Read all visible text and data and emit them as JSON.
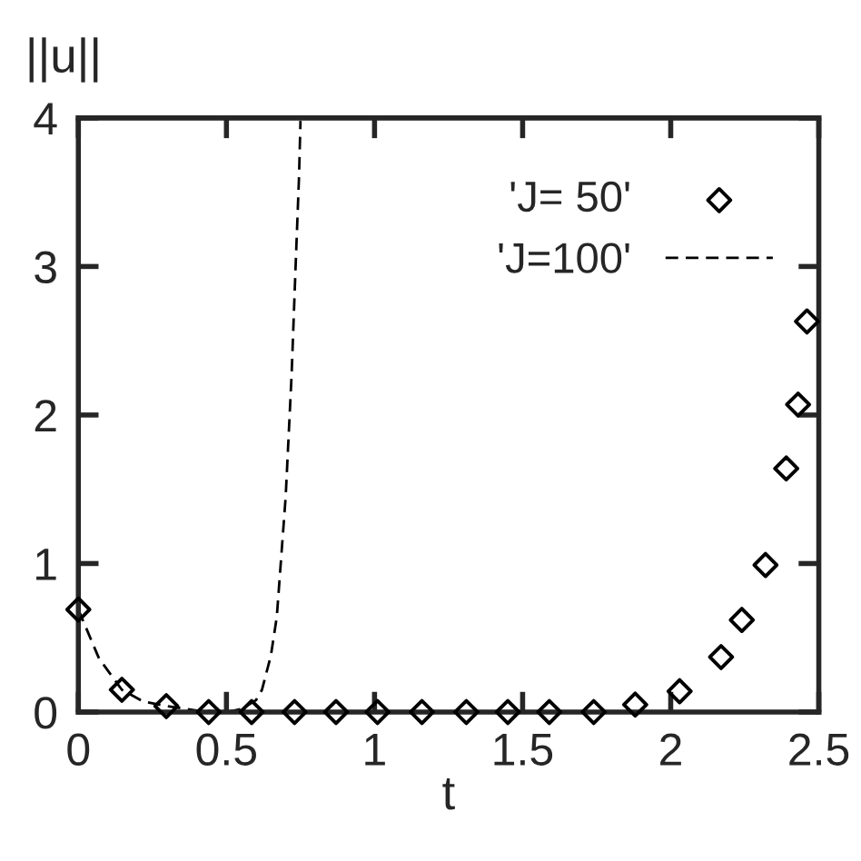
{
  "chart_data": {
    "type": "scatter",
    "xlabel": "t",
    "ylabel": "||u||",
    "xlim": [
      0,
      2.5
    ],
    "ylim": [
      0,
      4
    ],
    "xticks": [
      0,
      0.5,
      1,
      1.5,
      2,
      2.5
    ],
    "yticks": [
      0,
      1,
      2,
      3,
      4
    ],
    "grid": false,
    "legend": "top right",
    "series": [
      {
        "name": "'J= 50'",
        "marker": "diamond",
        "color": "#000000",
        "x": [
          0,
          0.147,
          0.297,
          0.44,
          0.585,
          0.73,
          0.87,
          1.01,
          1.16,
          1.31,
          1.45,
          1.59,
          1.74,
          1.88,
          2.03,
          2.17,
          2.24,
          2.32,
          2.39,
          2.43,
          2.46
        ],
        "values": [
          0.69,
          0.15,
          0.04,
          0,
          0,
          0,
          0,
          0,
          0,
          0,
          0,
          0,
          0,
          0.05,
          0.14,
          0.37,
          0.62,
          0.99,
          1.64,
          2.07,
          2.63
        ]
      },
      {
        "name": "'J=100'",
        "type": "line",
        "line_style": "dashed",
        "color": "#000000",
        "x": [
          0,
          0.07,
          0.147,
          0.22,
          0.3,
          0.4,
          0.5,
          0.55,
          0.6,
          0.62,
          0.65,
          0.67,
          0.7,
          0.72,
          0.735,
          0.745,
          0.75
        ],
        "values": [
          0.69,
          0.36,
          0.15,
          0.07,
          0.04,
          0.01,
          0,
          0.02,
          0.08,
          0.15,
          0.38,
          0.64,
          1.45,
          2.27,
          3.08,
          3.6,
          3.98
        ]
      }
    ]
  }
}
